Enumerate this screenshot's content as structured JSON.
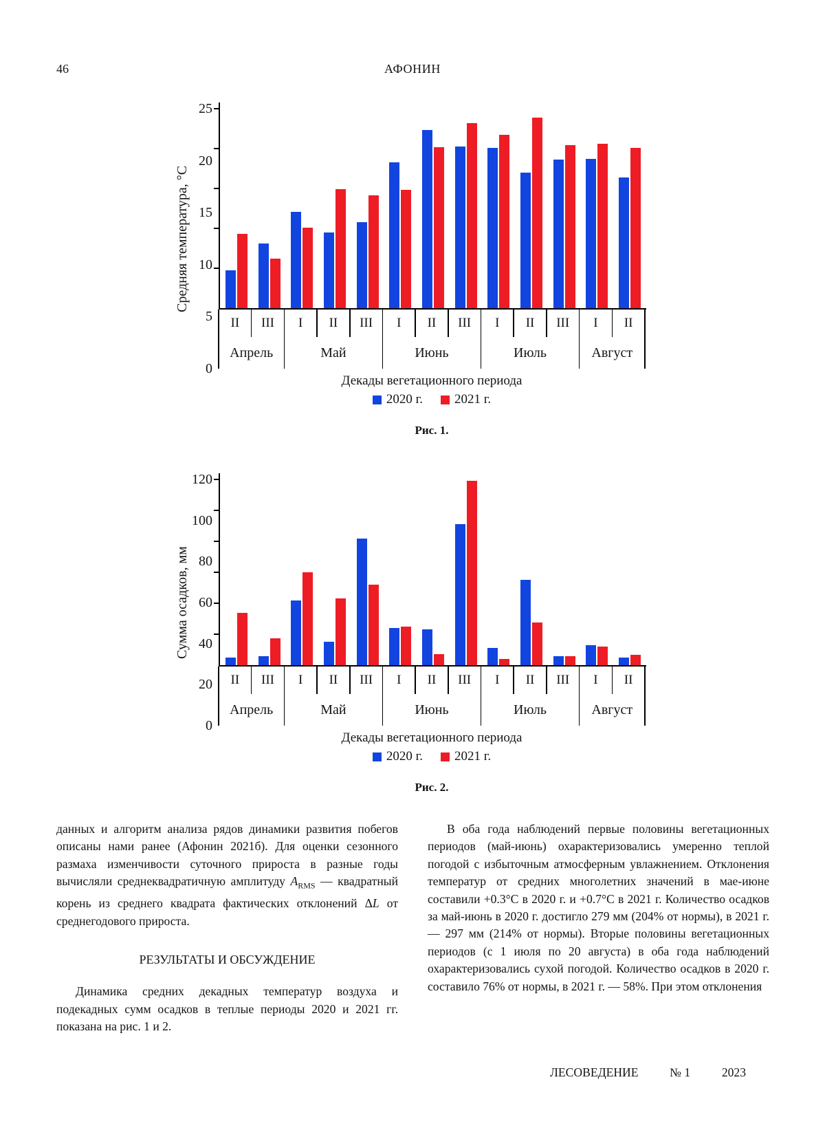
{
  "page": {
    "number": "46",
    "running_head": "АФОНИН"
  },
  "chart_data": [
    {
      "type": "bar",
      "caption": "Рис. 1.",
      "ylabel": "Средняя температура, °C",
      "xlabel": "Декады вегетационного периода",
      "ylim": [
        0,
        25
      ],
      "yticks": [
        0,
        5,
        10,
        15,
        20,
        25
      ],
      "grid": false,
      "legend_position": "bottom",
      "months": [
        {
          "label": "Апрель",
          "decades": [
            "II",
            "III"
          ]
        },
        {
          "label": "Май",
          "decades": [
            "I",
            "II",
            "III"
          ]
        },
        {
          "label": "Июнь",
          "decades": [
            "I",
            "II",
            "III"
          ]
        },
        {
          "label": "Июль",
          "decades": [
            "I",
            "II",
            "III"
          ]
        },
        {
          "label": "Август",
          "decades": [
            "I",
            "II"
          ]
        }
      ],
      "series": [
        {
          "name": "2020 г.",
          "color": "#1245e0",
          "values": [
            4.7,
            8.1,
            12.1,
            9.5,
            10.8,
            18.3,
            22.3,
            20.3,
            20.1,
            17.0,
            18.6,
            18.7,
            16.4
          ]
        },
        {
          "name": "2021 г.",
          "color": "#ee1c25",
          "values": [
            9.3,
            6.2,
            10.1,
            14.9,
            14.1,
            14.8,
            20.2,
            23.2,
            21.7,
            23.9,
            20.4,
            20.6,
            20.1
          ]
        }
      ]
    },
    {
      "type": "bar",
      "caption": "Рис. 2.",
      "ylabel": "Сумма осадков, мм",
      "xlabel": "Декады вегетационного периода",
      "ylim": [
        0,
        120
      ],
      "yticks": [
        0,
        20,
        40,
        60,
        80,
        100,
        120
      ],
      "grid": false,
      "legend_position": "bottom",
      "months": [
        {
          "label": "Апрель",
          "decades": [
            "II",
            "III"
          ]
        },
        {
          "label": "Май",
          "decades": [
            "I",
            "II",
            "III"
          ]
        },
        {
          "label": "Июнь",
          "decades": [
            "I",
            "II",
            "III"
          ]
        },
        {
          "label": "Июль",
          "decades": [
            "I",
            "II",
            "III"
          ]
        },
        {
          "label": "Август",
          "decades": [
            "I",
            "II"
          ]
        }
      ],
      "series": [
        {
          "name": "2020 г.",
          "color": "#1245e0",
          "values": [
            5,
            6,
            42,
            15,
            82,
            24,
            23,
            91,
            11,
            55,
            6,
            13,
            5
          ]
        },
        {
          "name": "2021 г.",
          "color": "#ee1c25",
          "values": [
            34,
            17.5,
            60,
            43,
            52,
            25,
            7,
            119,
            4,
            27.5,
            6,
            12,
            6.5
          ]
        }
      ]
    }
  ],
  "text": {
    "left_column": {
      "paragraph1_segments": [
        {
          "text": "данных и алгоритм анализа рядов динамики развития побегов описаны нами ранее (Афонин 2021б). Для оценки сезонного размаха изменчивости суточного прироста в разные годы вычисляли среднеквадратичную амплитуду ",
          "style": "normal"
        },
        {
          "text": "A",
          "style": "italic"
        },
        {
          "text": "RMS",
          "style": "sub"
        },
        {
          "text": " — квадратный корень из среднего квадрата фактических отклонений Δ",
          "style": "normal"
        },
        {
          "text": "L",
          "style": "italic"
        },
        {
          "text": " от среднегодового прироста.",
          "style": "normal"
        }
      ],
      "section_heading": "РЕЗУЛЬТАТЫ И ОБСУЖДЕНИЕ",
      "paragraph2": "Динамика средних декадных температур воздуха и подекадных сумм осадков в теплые периоды 2020 и 2021 гг. показана на рис. 1 и 2."
    },
    "right_column": {
      "paragraph1": "В оба года наблюдений первые половины вегетационных периодов (май-июнь) охарактеризовались умеренно теплой погодой с избыточным атмосферным увлажнением. Отклонения температур от средних многолетних значений в мае-июне составили +0.3°C в 2020 г. и +0.7°C в 2021 г. Количество осадков за май-июнь в 2020 г. достигло 279 мм (204% от нормы), в 2021 г. — 297 мм (214% от нормы). Вторые половины вегетационных периодов (с 1 июля по 20 августа) в оба года наблюдений охарактеризовались сухой погодой. Количество осадков в 2020 г. составило 76% от нормы, в 2021 г. — 58%. При этом отклонения"
    }
  },
  "footer": {
    "journal": "ЛЕСОВЕДЕНИЕ",
    "issue": "№ 1",
    "year": "2023"
  }
}
